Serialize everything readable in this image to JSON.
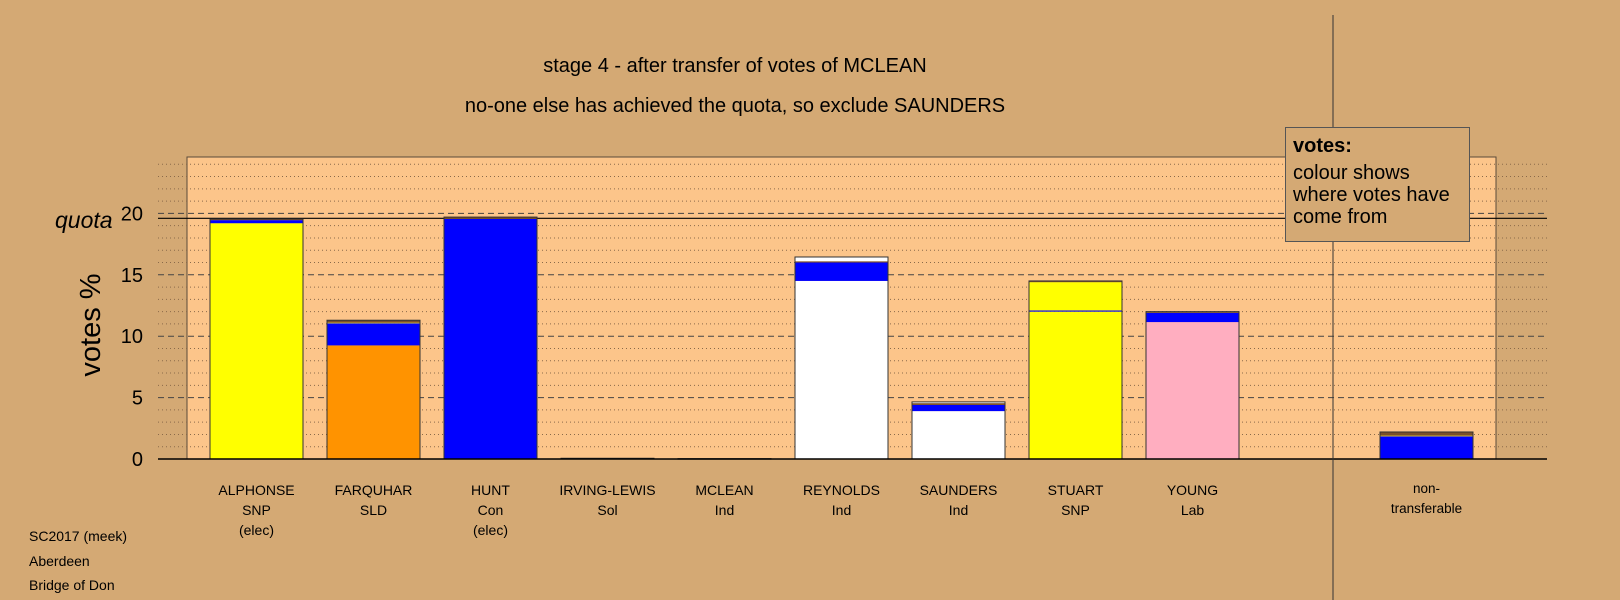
{
  "chart_data": {
    "type": "bar",
    "stacked": true,
    "title": "stage 4 - after transfer of votes of MCLEAN",
    "subtitle": "no-one else has achieved the quota, so exclude SAUNDERS",
    "ylabel": "votes %",
    "quota_label": "quota",
    "quota": 19.6,
    "ylim": [
      0,
      24.5
    ],
    "yticks": [
      0,
      5,
      10,
      15,
      20
    ],
    "categories": [
      {
        "name": "ALPHONSE",
        "party": "SNP",
        "status": "(elec)"
      },
      {
        "name": "FARQUHAR",
        "party": "SLD",
        "status": ""
      },
      {
        "name": "HUNT",
        "party": "Con",
        "status": "(elec)"
      },
      {
        "name": "IRVING-LEWIS",
        "party": "Sol",
        "status": ""
      },
      {
        "name": "MCLEAN",
        "party": "Ind",
        "status": ""
      },
      {
        "name": "REYNOLDS",
        "party": "Ind",
        "status": ""
      },
      {
        "name": "SAUNDERS",
        "party": "Ind",
        "status": ""
      },
      {
        "name": "STUART",
        "party": "SNP",
        "status": ""
      },
      {
        "name": "YOUNG",
        "party": "Lab",
        "status": ""
      },
      {
        "name": "non-",
        "party": "transferable",
        "status": ""
      }
    ],
    "bars": [
      {
        "segments": [
          {
            "color": "#ffff00",
            "value": 19.2
          },
          {
            "color": "#0000ff",
            "value": 0.25
          },
          {
            "color": "#7a4f2a",
            "value": 0.1
          }
        ]
      },
      {
        "segments": [
          {
            "color": "#ff9300",
            "value": 9.25
          },
          {
            "color": "#0000ff",
            "value": 1.8
          },
          {
            "color": "#ffff00",
            "value": 0.05
          },
          {
            "color": "#7a4f2a",
            "value": 0.2
          }
        ]
      },
      {
        "segments": [
          {
            "color": "#0000ff",
            "value": 19.55
          },
          {
            "color": "#7a4f2a",
            "value": 0.15
          }
        ]
      },
      {
        "segments": [
          {
            "color": "#7a4f2a",
            "value": 0.06
          }
        ]
      },
      {
        "segments": [
          {
            "color": "#7a4f2a",
            "value": 0.03
          }
        ]
      },
      {
        "segments": [
          {
            "color": "#ffffff",
            "value": 14.5
          },
          {
            "color": "#0000ff",
            "value": 1.5
          },
          {
            "color": "#7a4f2a",
            "value": 0.1
          },
          {
            "color": "#ffffff",
            "value": 0.35
          }
        ]
      },
      {
        "segments": [
          {
            "color": "#ffffff",
            "value": 3.9
          },
          {
            "color": "#0000ff",
            "value": 0.5
          },
          {
            "color": "#7a4f2a",
            "value": 0.15
          },
          {
            "color": "#ffffff",
            "value": 0.1
          }
        ]
      },
      {
        "segments": [
          {
            "color": "#ffff00",
            "value": 12.0
          },
          {
            "color": "#0000ff",
            "value": 0.1
          },
          {
            "color": "#ffff00",
            "value": 2.3
          },
          {
            "color": "#7a4f2a",
            "value": 0.1
          }
        ]
      },
      {
        "segments": [
          {
            "color": "#ffaec0",
            "value": 11.15
          },
          {
            "color": "#0000ff",
            "value": 0.75
          },
          {
            "color": "#7a4f2a",
            "value": 0.1
          }
        ]
      },
      {
        "segments": [
          {
            "color": "#0000ff",
            "value": 1.85
          },
          {
            "color": "#ffff00",
            "value": 0.05
          },
          {
            "color": "#7a4f2a",
            "value": 0.3
          }
        ]
      }
    ]
  },
  "legend": {
    "heading": "votes:",
    "body": "colour shows where votes have come from"
  },
  "footer": {
    "line1": "SC2017 (meek)",
    "line2": "Aberdeen",
    "line3": "Bridge of Don"
  },
  "colors": {
    "background": "#d4a974",
    "plot_area": "#fcc58a",
    "snp": "#ffff00",
    "con": "#0000ff",
    "sld": "#ff9300",
    "lab": "#ffaec0",
    "ind": "#ffffff"
  }
}
